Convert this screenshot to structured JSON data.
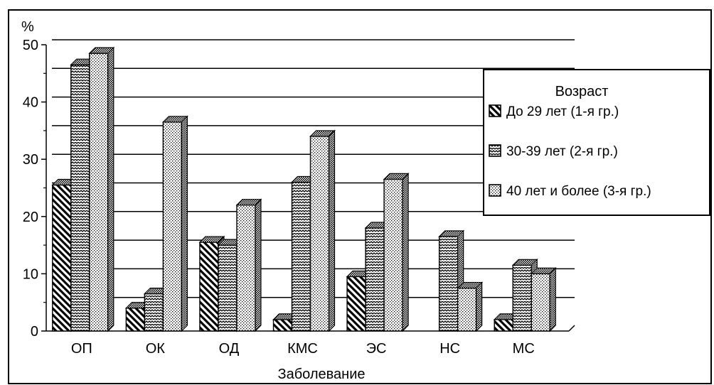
{
  "chart_data": {
    "type": "bar",
    "ylabel": "%",
    "xlabel": "Заболевание",
    "ylim": [
      0,
      50
    ],
    "yticks": [
      0,
      10,
      20,
      30,
      40,
      50
    ],
    "categories": [
      "ОП",
      "ОК",
      "ОД",
      "КМС",
      "ЭС",
      "НС",
      "МС"
    ],
    "legend": {
      "title": "Возраст",
      "position": "right"
    },
    "series": [
      {
        "name": "До 29 лет (1-я гр.)",
        "values": [
          25.5,
          4,
          15.5,
          2,
          9.5,
          null,
          2
        ],
        "pattern": "diagonal"
      },
      {
        "name": "30-39 лет (2-я гр.)",
        "values": [
          46.5,
          6.5,
          15,
          26,
          18,
          16.5,
          11.5
        ],
        "pattern": "zigzag"
      },
      {
        "name": "40 лет и более (3-я гр.)",
        "values": [
          48.5,
          36.5,
          22,
          34,
          26.5,
          7.5,
          10
        ],
        "pattern": "dots"
      }
    ],
    "grid": true
  }
}
